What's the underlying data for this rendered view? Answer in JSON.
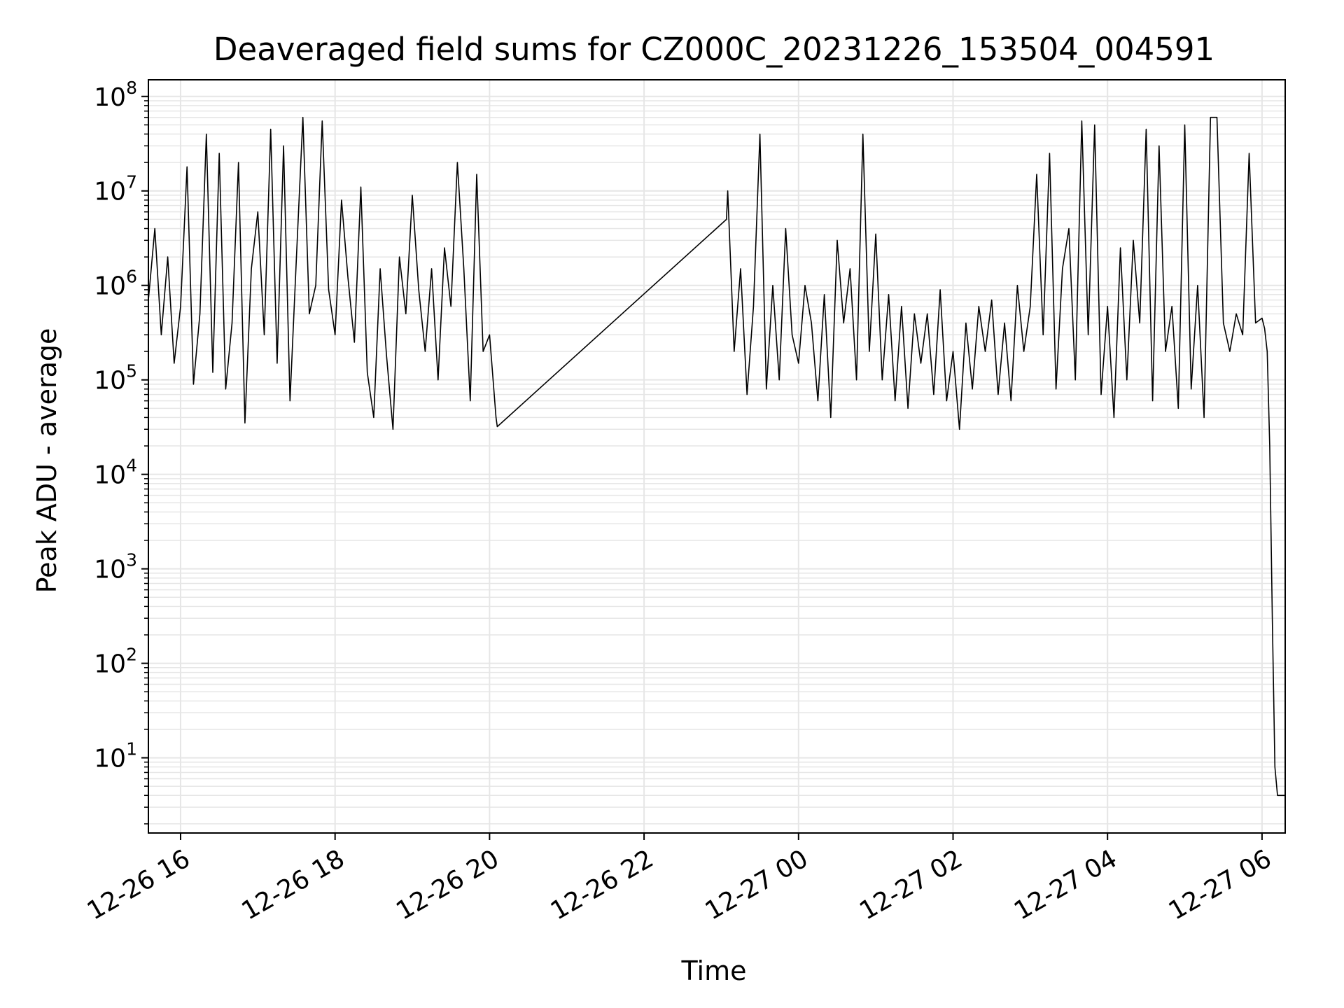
{
  "chart_data": {
    "type": "line",
    "title": "Deaveraged field sums for CZ000C_20231226_153504_004591",
    "xlabel": "Time",
    "ylabel": "Peak ADU - average",
    "x_is_time": true,
    "xlim": [
      "2023-12-26 15:35",
      "2023-12-27 06:18"
    ],
    "ylim": [
      1.6,
      150000000
    ],
    "yscale": "log",
    "grid": true,
    "legend": "none",
    "line_color": "#000000",
    "grid_color": "#e6e6e6",
    "x_ticks": [
      {
        "value": "2023-12-26 16:00",
        "label": "12-26 16"
      },
      {
        "value": "2023-12-26 18:00",
        "label": "12-26 18"
      },
      {
        "value": "2023-12-26 20:00",
        "label": "12-26 20"
      },
      {
        "value": "2023-12-26 22:00",
        "label": "12-26 22"
      },
      {
        "value": "2023-12-27 00:00",
        "label": "12-27 00"
      },
      {
        "value": "2023-12-27 02:00",
        "label": "12-27 02"
      },
      {
        "value": "2023-12-27 04:00",
        "label": "12-27 04"
      },
      {
        "value": "2023-12-27 06:00",
        "label": "12-27 06"
      }
    ],
    "y_ticks": [
      {
        "value": 10,
        "base": "10",
        "exp": "1"
      },
      {
        "value": 100,
        "base": "10",
        "exp": "2"
      },
      {
        "value": 1000,
        "base": "10",
        "exp": "3"
      },
      {
        "value": 10000,
        "base": "10",
        "exp": "4"
      },
      {
        "value": 100000,
        "base": "10",
        "exp": "5"
      },
      {
        "value": 1000000,
        "base": "10",
        "exp": "6"
      },
      {
        "value": 10000000,
        "base": "10",
        "exp": "7"
      },
      {
        "value": 100000000,
        "base": "10",
        "exp": "8"
      }
    ],
    "series": [
      {
        "x": [
          "2023-12-26 15:35",
          "2023-12-26 15:40",
          "2023-12-26 15:45",
          "2023-12-26 15:50",
          "2023-12-26 15:55",
          "2023-12-26 16:00",
          "2023-12-26 16:05",
          "2023-12-26 16:10",
          "2023-12-26 16:15",
          "2023-12-26 16:20",
          "2023-12-26 16:25",
          "2023-12-26 16:30",
          "2023-12-26 16:35",
          "2023-12-26 16:40",
          "2023-12-26 16:45",
          "2023-12-26 16:50",
          "2023-12-26 16:55",
          "2023-12-26 17:00",
          "2023-12-26 17:05",
          "2023-12-26 17:10",
          "2023-12-26 17:15",
          "2023-12-26 17:20",
          "2023-12-26 17:25",
          "2023-12-26 17:30",
          "2023-12-26 17:35",
          "2023-12-26 17:40",
          "2023-12-26 17:45",
          "2023-12-26 17:50",
          "2023-12-26 17:55",
          "2023-12-26 18:00",
          "2023-12-26 18:05",
          "2023-12-26 18:10",
          "2023-12-26 18:15",
          "2023-12-26 18:20",
          "2023-12-26 18:25",
          "2023-12-26 18:30",
          "2023-12-26 18:35",
          "2023-12-26 18:40",
          "2023-12-26 18:45",
          "2023-12-26 18:50",
          "2023-12-26 18:55",
          "2023-12-26 19:00",
          "2023-12-26 19:05",
          "2023-12-26 19:10",
          "2023-12-26 19:15",
          "2023-12-26 19:20",
          "2023-12-26 19:25",
          "2023-12-26 19:30",
          "2023-12-26 19:35",
          "2023-12-26 19:40",
          "2023-12-26 19:45",
          "2023-12-26 19:50",
          "2023-12-26 19:55",
          "2023-12-26 20:00",
          "2023-12-26 20:05",
          "2023-12-26 20:06",
          "2023-12-26 23:04",
          "2023-12-26 23:05",
          "2023-12-26 23:10",
          "2023-12-26 23:15",
          "2023-12-26 23:20",
          "2023-12-26 23:25",
          "2023-12-26 23:30",
          "2023-12-26 23:35",
          "2023-12-26 23:40",
          "2023-12-26 23:45",
          "2023-12-26 23:50",
          "2023-12-26 23:55",
          "2023-12-27 00:00",
          "2023-12-27 00:05",
          "2023-12-27 00:10",
          "2023-12-27 00:15",
          "2023-12-27 00:20",
          "2023-12-27 00:25",
          "2023-12-27 00:30",
          "2023-12-27 00:35",
          "2023-12-27 00:40",
          "2023-12-27 00:45",
          "2023-12-27 00:50",
          "2023-12-27 00:55",
          "2023-12-27 01:00",
          "2023-12-27 01:05",
          "2023-12-27 01:10",
          "2023-12-27 01:15",
          "2023-12-27 01:20",
          "2023-12-27 01:25",
          "2023-12-27 01:30",
          "2023-12-27 01:35",
          "2023-12-27 01:40",
          "2023-12-27 01:45",
          "2023-12-27 01:50",
          "2023-12-27 01:55",
          "2023-12-27 02:00",
          "2023-12-27 02:05",
          "2023-12-27 02:10",
          "2023-12-27 02:15",
          "2023-12-27 02:20",
          "2023-12-27 02:25",
          "2023-12-27 02:30",
          "2023-12-27 02:35",
          "2023-12-27 02:40",
          "2023-12-27 02:45",
          "2023-12-27 02:50",
          "2023-12-27 02:55",
          "2023-12-27 03:00",
          "2023-12-27 03:05",
          "2023-12-27 03:10",
          "2023-12-27 03:15",
          "2023-12-27 03:20",
          "2023-12-27 03:25",
          "2023-12-27 03:30",
          "2023-12-27 03:35",
          "2023-12-27 03:40",
          "2023-12-27 03:45",
          "2023-12-27 03:50",
          "2023-12-27 03:55",
          "2023-12-27 04:00",
          "2023-12-27 04:05",
          "2023-12-27 04:10",
          "2023-12-27 04:15",
          "2023-12-27 04:20",
          "2023-12-27 04:25",
          "2023-12-27 04:30",
          "2023-12-27 04:35",
          "2023-12-27 04:40",
          "2023-12-27 04:45",
          "2023-12-27 04:50",
          "2023-12-27 04:55",
          "2023-12-27 05:00",
          "2023-12-27 05:05",
          "2023-12-27 05:10",
          "2023-12-27 05:15",
          "2023-12-27 05:20",
          "2023-12-27 05:25",
          "2023-12-27 05:30",
          "2023-12-27 05:35",
          "2023-12-27 05:40",
          "2023-12-27 05:45",
          "2023-12-27 05:50",
          "2023-12-27 05:55",
          "2023-12-27 06:00",
          "2023-12-27 06:02",
          "2023-12-27 06:04",
          "2023-12-27 06:06",
          "2023-12-27 06:08",
          "2023-12-27 06:10",
          "2023-12-27 06:12",
          "2023-12-27 06:18"
        ],
        "y": [
          700000,
          4000000,
          300000,
          2000000,
          150000,
          600000,
          18000000,
          90000,
          500000,
          40000000,
          120000,
          25000000,
          80000,
          400000,
          20000000,
          35000,
          1500000,
          6000000,
          300000,
          45000000,
          150000,
          30000000,
          60000,
          2000000,
          60000000,
          500000,
          1000000,
          55000000,
          900000,
          300000,
          8000000,
          1200000,
          250000,
          11000000,
          120000,
          40000,
          1500000,
          180000,
          30000,
          2000000,
          500000,
          9000000,
          900000,
          200000,
          1500000,
          100000,
          2500000,
          600000,
          20000000,
          1500000,
          60000,
          15000000,
          200000,
          300000,
          40000,
          32000,
          5000000,
          10000000,
          200000,
          1500000,
          70000,
          600000,
          40000000,
          80000,
          1000000,
          100000,
          4000000,
          300000,
          150000,
          1000000,
          400000,
          60000,
          800000,
          40000,
          3000000,
          400000,
          1500000,
          100000,
          40000000,
          200000,
          3500000,
          100000,
          800000,
          60000,
          600000,
          50000,
          500000,
          150000,
          500000,
          70000,
          900000,
          60000,
          200000,
          30000,
          400000,
          80000,
          600000,
          200000,
          700000,
          70000,
          400000,
          60000,
          1000000,
          200000,
          600000,
          15000000,
          300000,
          25000000,
          80000,
          1500000,
          4000000,
          100000,
          55000000,
          300000,
          50000000,
          70000,
          600000,
          40000,
          2500000,
          100000,
          3000000,
          400000,
          45000000,
          60000,
          30000000,
          200000,
          600000,
          50000,
          50000000,
          80000,
          1000000,
          40000,
          60000000,
          60000000,
          400000,
          200000,
          500000,
          300000,
          25000000,
          400000,
          450000,
          350000,
          200000,
          20000,
          300,
          8,
          4,
          4
        ]
      }
    ]
  }
}
